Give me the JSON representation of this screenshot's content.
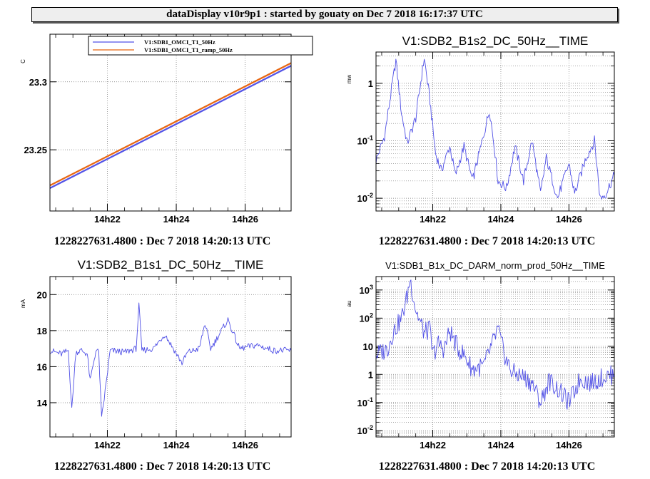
{
  "header": {
    "title": "dataDisplay v10r9p1 : started by gouaty on Dec  7 2018 16:17:37 UTC"
  },
  "footers": [
    "1228227631.4800 : Dec  7 2018 14:20:13 UTC",
    "1228227631.4800 : Dec  7 2018 14:20:13 UTC",
    "1228227631.4800 : Dec  7 2018 14:20:13 UTC",
    "1228227631.4800 : Dec  7 2018 14:20:13 UTC"
  ],
  "colors": {
    "blue": "#5050e6",
    "orange": "#e8650f",
    "grid": "#777777",
    "axis": "#000000"
  },
  "chart_data": [
    {
      "type": "line",
      "title": "",
      "ylabel": "C",
      "xlabel": "",
      "x_range": [
        "14h20m20s",
        "14h27m20s"
      ],
      "x_ticks": [
        "14h22",
        "14h24",
        "14h26"
      ],
      "ylim": [
        23.205,
        23.335
      ],
      "y_ticks": [
        23.25,
        23.3
      ],
      "y_tick_labels": [
        "23.25",
        "23.3"
      ],
      "log_y": false,
      "grid": true,
      "legend_position": "top",
      "series": [
        {
          "name": "V1:SDB1_OMCI_T1_50Hz",
          "color": "#5050e6",
          "x": [
            "14h20m20s",
            "14h27m20s"
          ],
          "values": [
            23.222,
            23.312
          ]
        },
        {
          "name": "V1:SDB1_OMCI_T1_ramp_50Hz",
          "color": "#e8650f",
          "x": [
            "14h20m20s",
            "14h27m20s"
          ],
          "values": [
            23.224,
            23.314
          ]
        }
      ]
    },
    {
      "type": "line",
      "title": "V1:SDB2_B1s2_DC_50Hz__TIME",
      "ylabel": "mw",
      "xlabel": "",
      "x_range": [
        "14h20m20s",
        "14h27m20s"
      ],
      "x_ticks": [
        "14h22",
        "14h24",
        "14h26"
      ],
      "ylim": [
        0.006,
        3.5
      ],
      "y_ticks": [
        0.01,
        0.1,
        1
      ],
      "y_tick_labels": [
        "10^-2",
        "10^-1",
        "1"
      ],
      "log_y": true,
      "grid": true,
      "series": [
        {
          "color": "#5050e6",
          "x": [
            "14h20m20s",
            "14h20m35s",
            "14h20m55s",
            "14h21m05s",
            "14h21m15s",
            "14h21m30s",
            "14h21m45s",
            "14h21m55s",
            "14h22m05s",
            "14h22m15s",
            "14h22m30s",
            "14h22m40s",
            "14h22m55s",
            "14h23m10s",
            "14h23m25s",
            "14h23m40s",
            "14h23m50s",
            "14h23m55s",
            "14h24m10s",
            "14h24m25s",
            "14h24m40s",
            "14h24m55s",
            "14h25m10s",
            "14h25m20s",
            "14h25m40s",
            "14h26m00s",
            "14h26m10s",
            "14h26m30s",
            "14h26m45s",
            "14h26m55s",
            "14h27m05s",
            "14h27m20s"
          ],
          "values": [
            0.045,
            0.12,
            2.5,
            0.3,
            0.09,
            0.25,
            2.8,
            0.5,
            0.06,
            0.03,
            0.08,
            0.025,
            0.08,
            0.02,
            0.08,
            0.35,
            0.06,
            0.02,
            0.015,
            0.08,
            0.02,
            0.1,
            0.012,
            0.05,
            0.01,
            0.04,
            0.012,
            0.05,
            0.1,
            0.01,
            0.012,
            0.025
          ]
        }
      ]
    },
    {
      "type": "line",
      "title": "V1:SDB2_B1s1_DC_50Hz__TIME",
      "ylabel": "mA",
      "xlabel": "",
      "x_range": [
        "14h20m20s",
        "14h27m20s"
      ],
      "x_ticks": [
        "14h22",
        "14h24",
        "14h26"
      ],
      "ylim": [
        12.1,
        21.0
      ],
      "y_ticks": [
        14,
        16,
        18,
        20
      ],
      "y_tick_labels": [
        "14",
        "16",
        "18",
        "20"
      ],
      "log_y": false,
      "grid": true,
      "series": [
        {
          "color": "#5050e6",
          "x": [
            "14h20m20s",
            "14h20m40s",
            "14h20m52s",
            "14h20m58s",
            "14h21m05s",
            "14h21m15s",
            "14h21m25s",
            "14h21m30s",
            "14h21m40s",
            "14h21m45s",
            "14h21m50s",
            "14h22m05s",
            "14h22m30s",
            "14h22m50s",
            "14h22m55s",
            "14h23m00s",
            "14h23m20s",
            "14h23m40s",
            "14h24m10s",
            "14h24m20s",
            "14h24m40s",
            "14h24m50s",
            "14h25m00s",
            "14h25m30s",
            "14h25m50s",
            "14h26m20s",
            "14h26m50s",
            "14h27m20s"
          ],
          "values": [
            16.9,
            16.7,
            16.9,
            13.6,
            16.8,
            16.9,
            16.7,
            15.2,
            16.9,
            16.8,
            13.1,
            16.9,
            16.8,
            17.0,
            19.4,
            16.9,
            17.0,
            17.8,
            16.2,
            16.8,
            17.0,
            18.4,
            17.0,
            18.6,
            17.0,
            17.2,
            16.9,
            16.9
          ]
        }
      ]
    },
    {
      "type": "line",
      "title": "V1:SDB1_B1x_DC_DARM_norm_prod_50Hz__TIME",
      "ylabel": "au",
      "xlabel": "",
      "x_range": [
        "14h20m20s",
        "14h27m20s"
      ],
      "x_ticks": [
        "14h22",
        "14h24",
        "14h26"
      ],
      "ylim": [
        0.006,
        3000
      ],
      "y_ticks": [
        0.01,
        0.1,
        1,
        10,
        100,
        1000
      ],
      "y_tick_labels": [
        "10^-2",
        "10^-1",
        "1",
        "10",
        "10^2",
        "10^3"
      ],
      "log_y": true,
      "grid": true,
      "series": [
        {
          "color": "#5050e6",
          "x": [
            "14h20m20s",
            "14h20m40s",
            "14h20m50s",
            "14h21m05s",
            "14h21m15s",
            "14h21m20s",
            "14h21m30s",
            "14h21m45s",
            "14h21m55s",
            "14h22m00s",
            "14h22m10s",
            "14h22m20s",
            "14h22m30s",
            "14h22m45s",
            "14h22m55s",
            "14h23m10s",
            "14h23m30s",
            "14h23m55s",
            "14h24m00s",
            "14h24m10s",
            "14h24m20s",
            "14h24m40s",
            "14h24m55s",
            "14h25m10s",
            "14h25m25s",
            "14h25m40s",
            "14h26m00s",
            "14h26m20s",
            "14h26m40s",
            "14h27m00s",
            "14h27m20s"
          ],
          "values": [
            5,
            8,
            30,
            100,
            600,
            2500,
            200,
            30,
            40,
            5,
            12,
            8,
            35,
            8,
            5,
            1.5,
            2,
            40,
            15,
            3,
            1.2,
            0.8,
            0.5,
            0.1,
            0.6,
            0.3,
            0.1,
            0.7,
            0.5,
            0.8,
            1
          ]
        }
      ]
    }
  ]
}
